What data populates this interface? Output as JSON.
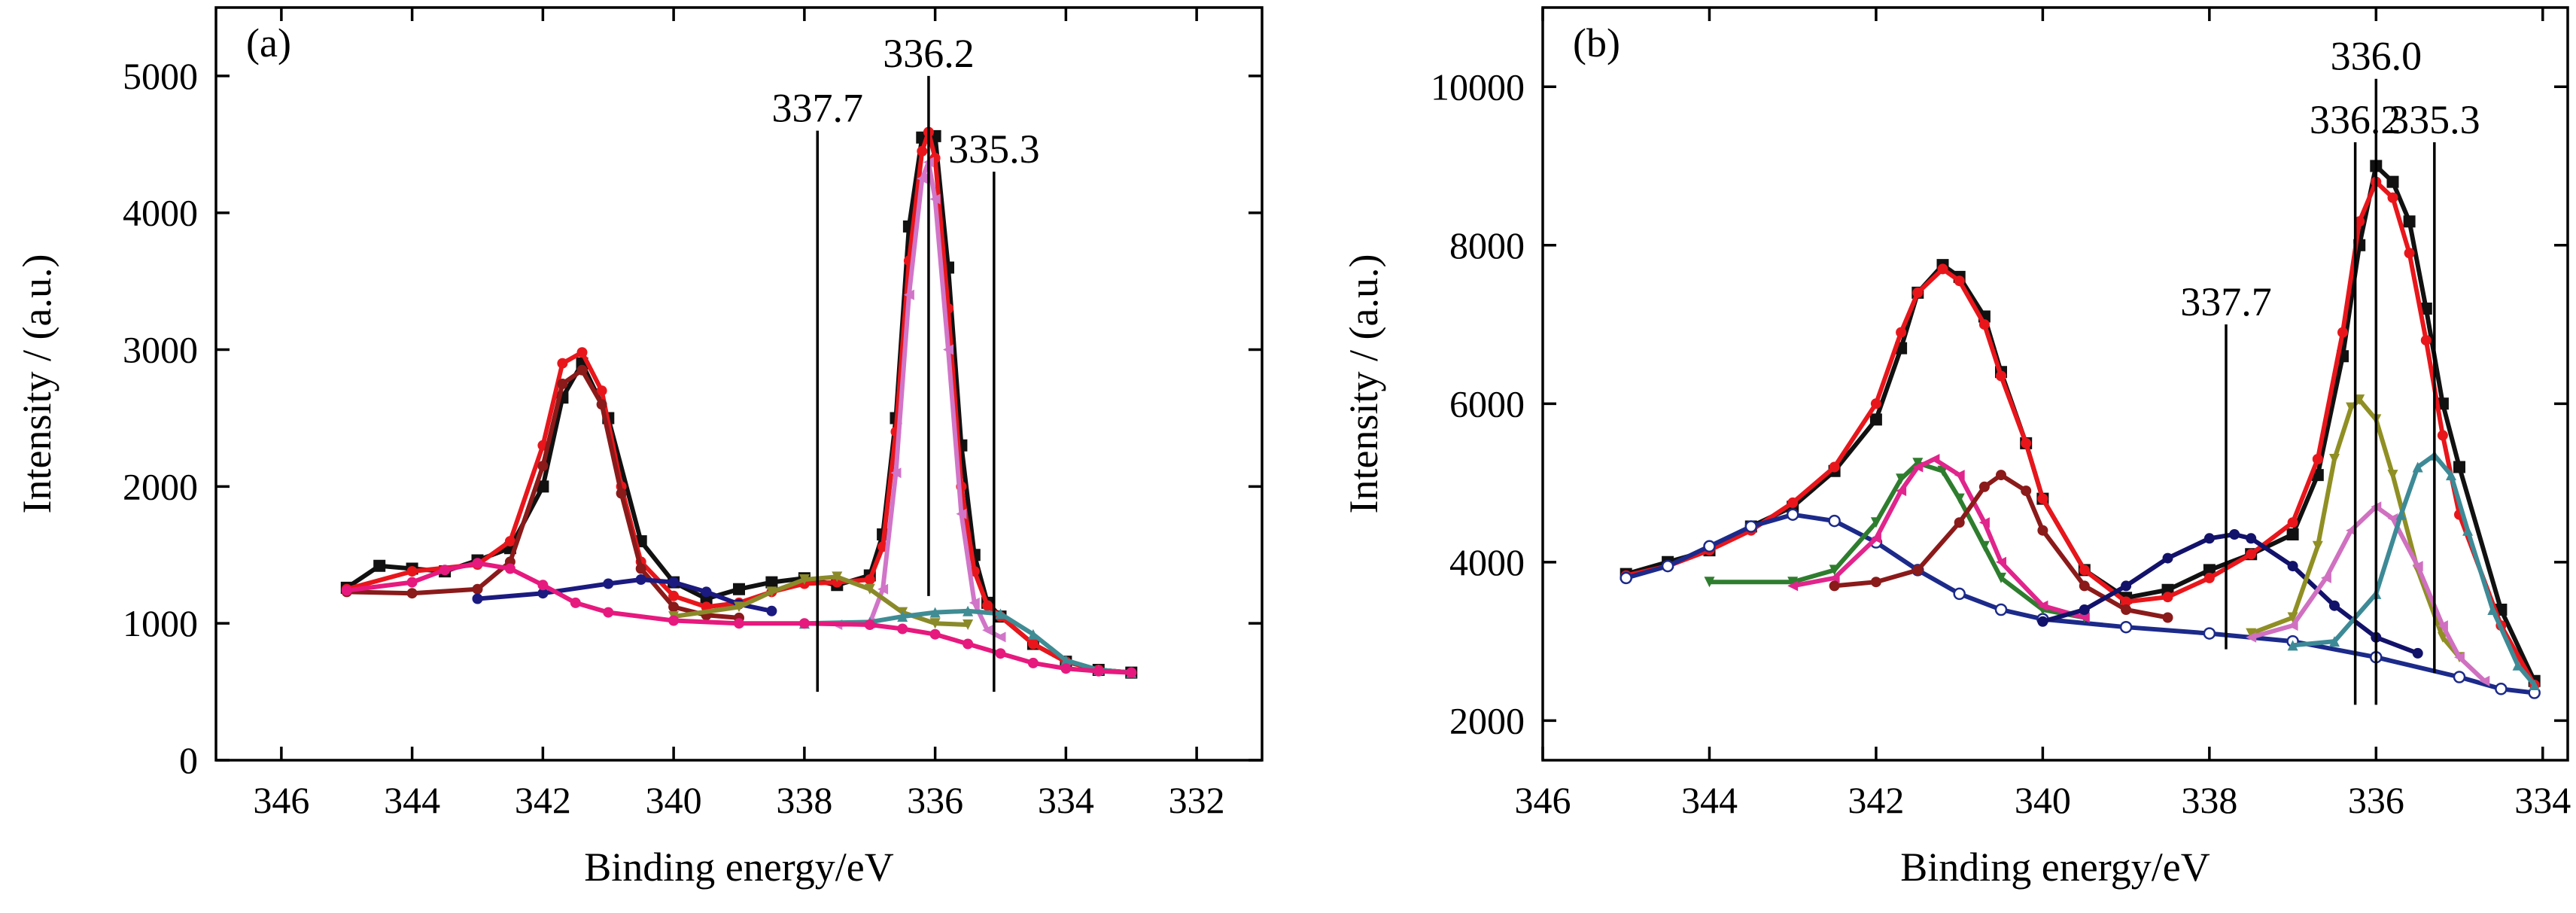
{
  "chart_data": [
    {
      "panel_label": "(a)",
      "type": "line",
      "xlabel": "Binding energy/eV",
      "ylabel": "Intensity / (a.u.)",
      "xlim": [
        347,
        331
      ],
      "ylim": [
        0,
        5500
      ],
      "x_reversed": true,
      "xticks": [
        346,
        344,
        342,
        340,
        338,
        336,
        334,
        332
      ],
      "yticks": [
        0,
        1000,
        2000,
        3000,
        4000,
        5000
      ],
      "annotations": [
        {
          "text": "337.7",
          "x": 337.8,
          "y_top": 4600,
          "y_bottom": 500
        },
        {
          "text": "336.2",
          "x": 336.1,
          "y_top": 5000,
          "y_bottom": 1200
        },
        {
          "text": "335.3",
          "x": 335.1,
          "y_top": 4300,
          "y_bottom": 500
        }
      ],
      "series": [
        {
          "role": "experimental",
          "color": "#111111",
          "marker": "square",
          "x": [
            345.0,
            344.5,
            344.0,
            343.5,
            343.0,
            342.5,
            342.0,
            341.7,
            341.4,
            341.0,
            340.5,
            340.0,
            339.5,
            339.0,
            338.5,
            338.0,
            337.5,
            337.0,
            336.8,
            336.6,
            336.4,
            336.2,
            336.0,
            335.8,
            335.6,
            335.4,
            335.2,
            335.0,
            334.5,
            334.0,
            333.5,
            333.0
          ],
          "y": [
            1260,
            1420,
            1400,
            1380,
            1460,
            1550,
            2000,
            2650,
            2900,
            2500,
            1600,
            1300,
            1180,
            1250,
            1300,
            1330,
            1280,
            1350,
            1650,
            2500,
            3900,
            4550,
            4560,
            3600,
            2300,
            1500,
            1150,
            1050,
            850,
            720,
            660,
            640
          ]
        },
        {
          "role": "fit-envelope",
          "color": "#e8161b",
          "marker": "circle",
          "x": [
            345.0,
            344.0,
            343.0,
            342.5,
            342.0,
            341.7,
            341.4,
            341.1,
            340.8,
            340.5,
            340.0,
            339.5,
            339.0,
            338.5,
            338.0,
            337.5,
            337.0,
            336.8,
            336.6,
            336.4,
            336.2,
            336.1,
            336.0,
            335.8,
            335.6,
            335.4,
            335.2,
            335.0,
            334.5,
            334.0,
            333.5,
            333.0
          ],
          "y": [
            1250,
            1380,
            1430,
            1600,
            2300,
            2900,
            2980,
            2700,
            2000,
            1450,
            1200,
            1120,
            1150,
            1230,
            1290,
            1300,
            1320,
            1560,
            2400,
            3650,
            4450,
            4590,
            4400,
            3300,
            2000,
            1380,
            1130,
            1050,
            850,
            720,
            660,
            640
          ]
        },
        {
          "role": "component",
          "color": "#8b1a1a",
          "marker": "circle",
          "x": [
            345.0,
            344.0,
            343.0,
            342.5,
            342.0,
            341.7,
            341.4,
            341.1,
            340.8,
            340.5,
            340.0,
            339.5,
            339.0
          ],
          "y": [
            1230,
            1220,
            1250,
            1450,
            2150,
            2750,
            2850,
            2600,
            1950,
            1400,
            1120,
            1060,
            1040
          ]
        },
        {
          "role": "component",
          "color": "#d175c8",
          "marker": "triangle-left",
          "x": [
            337.5,
            337.0,
            336.8,
            336.6,
            336.4,
            336.2,
            336.1,
            336.0,
            335.8,
            335.6,
            335.4,
            335.2,
            335.0
          ],
          "y": [
            990,
            1000,
            1250,
            2100,
            3400,
            4250,
            4370,
            4100,
            3000,
            1800,
            1150,
            950,
            900
          ]
        },
        {
          "role": "component",
          "color": "#1a1a80",
          "marker": "circle",
          "x": [
            343.0,
            342.0,
            341.0,
            340.5,
            340.0,
            339.5,
            339.0,
            338.5
          ],
          "y": [
            1180,
            1220,
            1290,
            1320,
            1300,
            1230,
            1140,
            1090
          ]
        },
        {
          "role": "component",
          "color": "#8a8a2a",
          "marker": "triangle-down",
          "x": [
            340.0,
            339.0,
            338.5,
            338.0,
            337.5,
            337.0,
            336.5,
            336.0,
            335.5
          ],
          "y": [
            1050,
            1120,
            1230,
            1320,
            1340,
            1250,
            1080,
            1000,
            990
          ]
        },
        {
          "role": "component",
          "color": "#3f8c94",
          "marker": "triangle-up",
          "x": [
            338.0,
            337.0,
            336.5,
            336.0,
            335.5,
            335.0,
            334.5,
            334.0,
            333.5,
            333.0
          ],
          "y": [
            1000,
            1010,
            1050,
            1080,
            1090,
            1070,
            920,
            730,
            660,
            640
          ]
        },
        {
          "role": "component",
          "color": "#e6197e",
          "marker": "circle",
          "x": [
            345.0,
            344.0,
            343.5,
            343.0,
            342.5,
            342.0,
            341.5,
            341.0,
            340.0,
            339.0,
            338.0,
            337.0,
            336.5,
            336.0,
            335.5,
            335.0,
            334.5,
            334.0,
            333.5,
            333.0
          ],
          "y": [
            1240,
            1300,
            1390,
            1440,
            1400,
            1280,
            1150,
            1080,
            1020,
            1000,
            1000,
            990,
            960,
            920,
            850,
            780,
            710,
            670,
            650,
            640
          ]
        }
      ]
    },
    {
      "panel_label": "(b)",
      "type": "line",
      "xlabel": "Binding energy/eV",
      "ylabel": "Intensity / (a.u.)",
      "xlim": [
        346,
        333.7
      ],
      "ylim": [
        1500,
        11000
      ],
      "x_reversed": true,
      "xticks": [
        346,
        344,
        342,
        340,
        338,
        336,
        334
      ],
      "yticks": [
        2000,
        4000,
        6000,
        8000,
        10000
      ],
      "annotations": [
        {
          "text": "337.7",
          "x": 337.8,
          "y_top": 7000,
          "y_bottom": 2900
        },
        {
          "text": "336.2",
          "x": 336.25,
          "y_top": 9300,
          "y_bottom": 2200
        },
        {
          "text": "336.0",
          "x": 336.0,
          "y_top": 10100,
          "y_bottom": 2200
        },
        {
          "text": "335.3",
          "x": 335.3,
          "y_top": 9300,
          "y_bottom": 2600
        }
      ],
      "series": [
        {
          "role": "experimental",
          "color": "#111111",
          "marker": "square",
          "x": [
            345.0,
            344.5,
            344.0,
            343.5,
            343.0,
            342.5,
            342.0,
            341.7,
            341.5,
            341.2,
            341.0,
            340.7,
            340.5,
            340.2,
            340.0,
            339.5,
            339.0,
            338.5,
            338.0,
            337.5,
            337.0,
            336.7,
            336.4,
            336.2,
            336.0,
            335.8,
            335.6,
            335.4,
            335.2,
            335.0,
            334.5,
            334.1
          ],
          "y": [
            3850,
            4000,
            4150,
            4450,
            4700,
            5150,
            5800,
            6700,
            7400,
            7750,
            7600,
            7100,
            6400,
            5500,
            4800,
            3900,
            3550,
            3650,
            3900,
            4100,
            4350,
            5100,
            6600,
            8000,
            9000,
            8800,
            8300,
            7200,
            6000,
            5200,
            3400,
            2500
          ]
        },
        {
          "role": "fit-envelope",
          "color": "#e8161b",
          "marker": "circle",
          "x": [
            345.0,
            344.5,
            344.0,
            343.5,
            343.0,
            342.5,
            342.0,
            341.7,
            341.5,
            341.2,
            341.0,
            340.7,
            340.5,
            340.2,
            340.0,
            339.5,
            339.0,
            338.5,
            338.0,
            337.5,
            337.0,
            336.7,
            336.4,
            336.2,
            336.0,
            335.8,
            335.6,
            335.4,
            335.2,
            335.0,
            334.5,
            334.1
          ],
          "y": [
            3830,
            3950,
            4150,
            4400,
            4750,
            5200,
            6000,
            6900,
            7400,
            7700,
            7550,
            7000,
            6350,
            5500,
            4800,
            3900,
            3500,
            3560,
            3800,
            4100,
            4500,
            5300,
            6900,
            8300,
            8800,
            8600,
            7900,
            6800,
            5600,
            4600,
            3200,
            2450
          ]
        },
        {
          "role": "component",
          "color": "#1c2a8a",
          "marker": "circle-open",
          "x": [
            345.0,
            344.5,
            344.0,
            343.5,
            343.0,
            342.5,
            342.0,
            341.5,
            341.0,
            340.5,
            340.0,
            339.0,
            338.0,
            337.0,
            336.0,
            335.0,
            334.5,
            334.1
          ],
          "y": [
            3800,
            3950,
            4200,
            4450,
            4600,
            4520,
            4250,
            3900,
            3600,
            3400,
            3280,
            3180,
            3100,
            3000,
            2800,
            2550,
            2400,
            2350
          ]
        },
        {
          "role": "component",
          "color": "#2e7d2e",
          "marker": "triangle-down",
          "x": [
            344.0,
            343.0,
            342.5,
            342.0,
            341.7,
            341.5,
            341.2,
            341.0,
            340.7,
            340.5,
            340.0,
            339.5
          ],
          "y": [
            3750,
            3750,
            3900,
            4500,
            5050,
            5250,
            5150,
            4800,
            4200,
            3800,
            3400,
            3300
          ]
        },
        {
          "role": "component",
          "color": "#e0258c",
          "marker": "triangle-left",
          "x": [
            343.0,
            342.5,
            342.0,
            341.7,
            341.5,
            341.3,
            341.0,
            340.7,
            340.5,
            340.0,
            339.5
          ],
          "y": [
            3700,
            3800,
            4300,
            4900,
            5200,
            5300,
            5100,
            4500,
            4000,
            3450,
            3300
          ]
        },
        {
          "role": "component",
          "color": "#8b1a1a",
          "marker": "circle",
          "x": [
            342.5,
            342.0,
            341.5,
            341.0,
            340.7,
            340.5,
            340.2,
            340.0,
            339.5,
            339.0,
            338.5
          ],
          "y": [
            3700,
            3750,
            3900,
            4500,
            4950,
            5100,
            4900,
            4400,
            3700,
            3400,
            3300
          ]
        },
        {
          "role": "component",
          "color": "#12126b",
          "marker": "circle",
          "x": [
            340.0,
            339.5,
            339.0,
            338.5,
            338.0,
            337.7,
            337.5,
            337.0,
            336.5,
            336.0,
            335.5
          ],
          "y": [
            3250,
            3400,
            3700,
            4050,
            4300,
            4350,
            4300,
            3950,
            3450,
            3050,
            2850
          ]
        },
        {
          "role": "component",
          "color": "#8f8f24",
          "marker": "triangle-down",
          "x": [
            337.5,
            337.0,
            336.7,
            336.5,
            336.3,
            336.2,
            336.0,
            335.8,
            335.5,
            335.2,
            335.0
          ],
          "y": [
            3100,
            3300,
            4200,
            5300,
            5950,
            6050,
            5800,
            5100,
            3900,
            3050,
            2800
          ]
        },
        {
          "role": "component",
          "color": "#d070c0",
          "marker": "triangle-left",
          "x": [
            337.5,
            337.0,
            336.6,
            336.3,
            336.0,
            335.8,
            335.5,
            335.2,
            335.0,
            334.7
          ],
          "y": [
            3050,
            3200,
            3800,
            4400,
            4700,
            4550,
            3950,
            3200,
            2800,
            2500
          ]
        },
        {
          "role": "component",
          "color": "#3d8a96",
          "marker": "triangle-up",
          "x": [
            337.0,
            336.5,
            336.0,
            335.7,
            335.5,
            335.3,
            335.1,
            334.9,
            334.6,
            334.3,
            334.1
          ],
          "y": [
            2950,
            3000,
            3600,
            4600,
            5200,
            5350,
            5100,
            4400,
            3400,
            2700,
            2450
          ]
        }
      ]
    }
  ]
}
